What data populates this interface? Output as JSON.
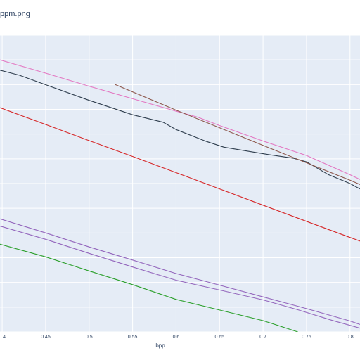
{
  "chart_data": {
    "type": "line",
    "title": "ppm.png",
    "xlabel": "bpp",
    "ylabel": "",
    "xlim": [
      0.3975,
      0.8115
    ],
    "x_ticks": [
      "0.4",
      "0.45",
      "0.5",
      "0.55",
      "0.6",
      "0.65",
      "0.7",
      "0.75",
      "0.8"
    ],
    "grid": true,
    "plot_background": "#e5ecf6",
    "series": [
      {
        "color": "#2f3e4e",
        "points": [
          [
            0.3975,
            0.917
          ],
          [
            0.42,
            0.876
          ],
          [
            0.45,
            0.799
          ],
          [
            0.5,
            0.673
          ],
          [
            0.55,
            0.556
          ],
          [
            0.585,
            0.496
          ],
          [
            0.6,
            0.437
          ],
          [
            0.635,
            0.34
          ],
          [
            0.655,
            0.294
          ],
          [
            0.7,
            0.241
          ],
          [
            0.735,
            0.204
          ],
          [
            0.75,
            0.176
          ],
          [
            0.775,
            0.072
          ],
          [
            0.8,
            0.0
          ],
          [
            0.8115,
            -0.044
          ]
        ]
      },
      {
        "color": "#e377c2",
        "points": [
          [
            0.3975,
            1.0
          ],
          [
            0.45,
            0.893
          ],
          [
            0.5,
            0.787
          ],
          [
            0.55,
            0.686
          ],
          [
            0.6,
            0.585
          ],
          [
            0.625,
            0.537
          ],
          [
            0.65,
            0.469
          ],
          [
            0.7,
            0.344
          ],
          [
            0.75,
            0.227
          ],
          [
            0.8,
            0.071
          ],
          [
            0.8115,
            0.033
          ]
        ]
      },
      {
        "color": "#8c564b",
        "points": [
          [
            0.53,
            0.8
          ],
          [
            0.6,
            0.594
          ],
          [
            0.7,
            0.308
          ],
          [
            0.8,
            0.027
          ],
          [
            0.8115,
            -0.008
          ]
        ]
      },
      {
        "color": "#d62728",
        "points": [
          [
            0.3975,
            0.613
          ],
          [
            0.45,
            0.478
          ],
          [
            0.5,
            0.347
          ],
          [
            0.55,
            0.219
          ],
          [
            0.6,
            0.088
          ],
          [
            0.65,
            -0.043
          ],
          [
            0.7,
            -0.175
          ],
          [
            0.75,
            -0.306
          ],
          [
            0.8,
            -0.436
          ],
          [
            0.8115,
            -0.465
          ]
        ]
      },
      {
        "color": "#9467bd",
        "points": [
          [
            0.3975,
            -0.344
          ],
          [
            0.45,
            -0.451
          ],
          [
            0.5,
            -0.565
          ],
          [
            0.55,
            -0.675
          ],
          [
            0.6,
            -0.782
          ],
          [
            0.65,
            -0.861
          ],
          [
            0.7,
            -0.941
          ],
          [
            0.74,
            -1.021
          ],
          [
            0.78,
            -1.108
          ],
          [
            0.8115,
            -1.17
          ]
        ]
      },
      {
        "color": "#9467bd",
        "points": [
          [
            0.3975,
            -0.286
          ],
          [
            0.45,
            -0.399
          ],
          [
            0.5,
            -0.513
          ],
          [
            0.55,
            -0.619
          ],
          [
            0.6,
            -0.728
          ],
          [
            0.65,
            -0.822
          ],
          [
            0.7,
            -0.917
          ],
          [
            0.75,
            -1.012
          ],
          [
            0.8,
            -1.112
          ],
          [
            0.8115,
            -1.14
          ]
        ]
      },
      {
        "color": "#2ca02c",
        "points": [
          [
            0.3975,
            -0.491
          ],
          [
            0.45,
            -0.593
          ],
          [
            0.5,
            -0.707
          ],
          [
            0.55,
            -0.818
          ],
          [
            0.6,
            -0.937
          ],
          [
            0.65,
            -1.023
          ],
          [
            0.7,
            -1.109
          ],
          [
            0.74,
            -1.2
          ]
        ]
      }
    ]
  }
}
